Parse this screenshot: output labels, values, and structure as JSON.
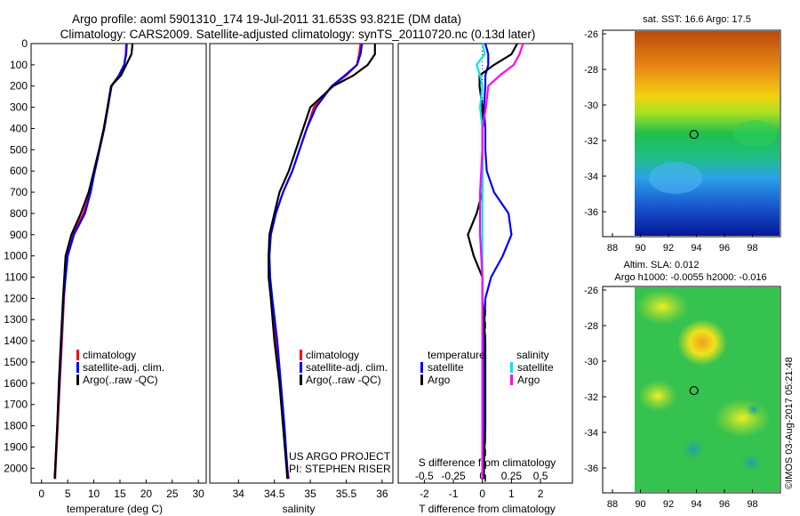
{
  "title": {
    "line1": "Argo profile: aoml 5901310_174 19-Jul-2011 31.653S 93.821E (DM data)",
    "line2": "Climatology: CARS2009. Satellite-adjusted climatology: synTS_20110720.nc (0.13d later)"
  },
  "depth_ticks": [
    "0",
    "100",
    "200",
    "300",
    "400",
    "500",
    "600",
    "700",
    "800",
    "900",
    "1000",
    "1100",
    "1200",
    "1300",
    "1400",
    "1500",
    "1600",
    "1700",
    "1800",
    "1900",
    "2000"
  ],
  "colors": {
    "climatology": "#ff0000",
    "satellite": "#0000ff",
    "argo": "#000000",
    "sat_salinity": "#00e5ee",
    "argo_salinity": "#ff00ff"
  },
  "legend": {
    "climatology": "climatology",
    "satellite_adj": "satellite-adj. clim.",
    "argo": "Argo(..raw -QC)",
    "temperature": "temperature",
    "salinity": "salinity",
    "satellite": "satellite",
    "argo_short": "Argo"
  },
  "credits": {
    "project": "US ARGO PROJECT",
    "pi": "PI: STEPHEN RISER",
    "imos": "©IMOS 03-Aug-2017 05:21:48"
  },
  "chart_data": [
    {
      "type": "line",
      "xlabel": "temperature (deg C)",
      "xticks": [
        "0",
        "5",
        "10",
        "15",
        "20",
        "25",
        "30"
      ],
      "xlim": [
        -2,
        31.5
      ],
      "ylim": [
        0,
        2070
      ],
      "y": [
        0,
        50,
        100,
        150,
        200,
        300,
        400,
        500,
        600,
        700,
        800,
        900,
        1000,
        1200,
        1400,
        1600,
        1800,
        2000,
        2050
      ],
      "series": [
        {
          "color": "#ff0000",
          "values": [
            16.2,
            16.1,
            15.8,
            14.8,
            13.3,
            12.7,
            12.0,
            11.1,
            10.2,
            9.3,
            8.0,
            6.0,
            4.8,
            4.3,
            3.9,
            3.5,
            3.1,
            2.7,
            2.6
          ]
        },
        {
          "color": "#0000ff",
          "values": [
            16.3,
            16.2,
            15.8,
            14.8,
            13.4,
            12.7,
            12.0,
            11.1,
            10.2,
            9.4,
            8.3,
            6.2,
            5.0,
            4.2,
            3.8,
            3.4,
            3.0,
            2.6,
            2.5
          ]
        },
        {
          "color": "#000000",
          "values": [
            17.4,
            17.2,
            16.2,
            15.2,
            13.3,
            12.6,
            11.9,
            11.0,
            10.0,
            9.0,
            7.5,
            5.7,
            4.6,
            4.1,
            3.7,
            3.3,
            3.0,
            2.6,
            2.5
          ]
        }
      ]
    },
    {
      "type": "line",
      "xlabel": "salinity",
      "xticks": [
        "34",
        "34.5",
        "35",
        "35.5",
        "36"
      ],
      "xlim": [
        33.6,
        36.15
      ],
      "ylim": [
        0,
        2070
      ],
      "y": [
        0,
        50,
        100,
        150,
        200,
        300,
        400,
        500,
        600,
        700,
        800,
        900,
        1000,
        1100,
        1200,
        1400,
        1600,
        1800,
        2000,
        2050
      ],
      "series": [
        {
          "color": "#ff0000",
          "values": [
            35.7,
            35.68,
            35.65,
            35.5,
            35.3,
            35.05,
            34.95,
            34.85,
            34.75,
            34.62,
            34.52,
            34.45,
            34.42,
            34.43,
            34.46,
            34.52,
            34.58,
            34.63,
            34.68,
            34.7
          ]
        },
        {
          "color": "#0000ff",
          "values": [
            35.72,
            35.7,
            35.65,
            35.48,
            35.3,
            35.08,
            34.95,
            34.85,
            34.75,
            34.62,
            34.52,
            34.45,
            34.43,
            34.44,
            34.47,
            34.54,
            34.59,
            34.64,
            34.68,
            34.69
          ]
        },
        {
          "color": "#000000",
          "values": [
            35.9,
            35.9,
            35.8,
            35.6,
            35.32,
            35.0,
            34.9,
            34.8,
            34.7,
            34.57,
            34.5,
            34.43,
            34.42,
            34.42,
            34.45,
            34.5,
            34.57,
            34.62,
            34.67,
            34.68
          ]
        }
      ]
    },
    {
      "type": "line",
      "xlabel": "T difference from climatology",
      "xticks": [
        "-2",
        "-1",
        "0",
        "1",
        "2"
      ],
      "top_label": "S difference from climatology",
      "top_ticks": [
        "-0.5",
        "-0.25",
        "0",
        "0.25",
        "0.5"
      ],
      "xlim": [
        -2.9,
        3.1
      ],
      "ylim": [
        0,
        2070
      ],
      "y": [
        0,
        50,
        100,
        150,
        200,
        300,
        400,
        500,
        600,
        700,
        800,
        900,
        1000,
        1100,
        1200,
        1400,
        1600,
        1800,
        2000,
        2050
      ],
      "series": [
        {
          "color": "#0000ff",
          "values": [
            0.1,
            0.2,
            0.2,
            0.1,
            0.1,
            0.05,
            0.1,
            0.1,
            0.15,
            0.4,
            0.9,
            1.0,
            0.7,
            0.3,
            0.1,
            0.05,
            0.05,
            0.05,
            0.05,
            0.05
          ]
        },
        {
          "color": "#000000",
          "values": [
            1.2,
            1.0,
            0.4,
            -0.1,
            -0.1,
            0.0,
            0.0,
            0.0,
            0.0,
            0.0,
            -0.2,
            -0.5,
            -0.3,
            0.0,
            0.0,
            0.1,
            0.1,
            0.1,
            0.05,
            0.05
          ]
        },
        {
          "color": "#00e5ee",
          "values": [
            0.0,
            0.02,
            -0.05,
            -0.02,
            0.0,
            -0.02,
            0.0,
            0.0,
            0.0,
            0.0,
            0.0,
            0.0,
            0.0,
            0.0,
            0.0,
            0.0,
            0.0,
            0.0,
            0.0,
            0.0
          ]
        },
        {
          "color": "#ff00ff",
          "values": [
            0.35,
            0.32,
            0.27,
            0.15,
            0.05,
            0.03,
            0.0,
            0.0,
            -0.01,
            -0.02,
            -0.02,
            -0.02,
            -0.01,
            0.0,
            0.0,
            0.0,
            0.0,
            0.0,
            0.0,
            0.0
          ]
        }
      ]
    },
    {
      "type": "heatmap",
      "title": "sat. SST: 16.6 Argo: 17.5",
      "xticks": [
        "88",
        "90",
        "92",
        "94",
        "96",
        "98"
      ],
      "yticks": [
        "-26",
        "-28",
        "-30",
        "-32",
        "-34",
        "-36"
      ],
      "xlim": [
        87.3,
        100.0
      ],
      "ylim": [
        -37.4,
        -25.8
      ],
      "point": [
        93.821,
        -31.653
      ]
    },
    {
      "type": "heatmap",
      "title": "Altim. SLA: 0.012",
      "subtitle": "Argo h1000: -0.0055 h2000: -0.016",
      "xticks": [
        "88",
        "90",
        "92",
        "94",
        "96",
        "98"
      ],
      "yticks": [
        "-26",
        "-28",
        "-30",
        "-32",
        "-34",
        "-36"
      ],
      "xlim": [
        87.3,
        100.0
      ],
      "ylim": [
        -37.4,
        -25.8
      ],
      "point": [
        93.821,
        -31.653
      ]
    }
  ]
}
